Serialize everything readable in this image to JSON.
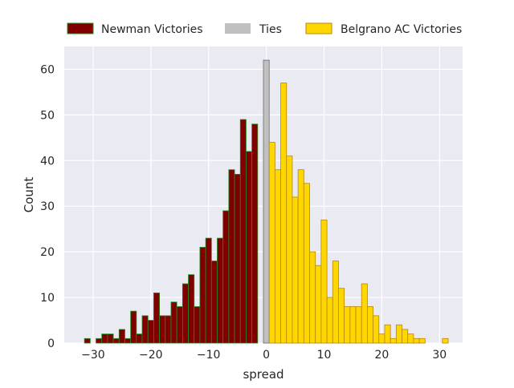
{
  "chart_data": {
    "type": "bar",
    "xlabel": "spread",
    "ylabel": "Count",
    "xlim": [
      -35,
      34
    ],
    "ylim": [
      0,
      65
    ],
    "x_ticks": [
      -30,
      -20,
      -10,
      0,
      10,
      20,
      30
    ],
    "x_tick_labels": [
      "−30",
      "−20",
      "−10",
      "0",
      "10",
      "20",
      "30"
    ],
    "y_ticks": [
      0,
      10,
      20,
      30,
      40,
      50,
      60
    ],
    "y_tick_labels": [
      "0",
      "10",
      "20",
      "30",
      "40",
      "50",
      "60"
    ],
    "grid": true,
    "legend_placement": "top",
    "series": [
      {
        "name": "Newman Victories",
        "color": "#800000",
        "edge_color": "#228b22",
        "x": [
          -31,
          -30,
          -29,
          -28,
          -27,
          -26,
          -25,
          -24,
          -23,
          -22,
          -21,
          -20,
          -19,
          -18,
          -17,
          -16,
          -15,
          -14,
          -13,
          -12,
          -11,
          -10,
          -9,
          -8,
          -7,
          -6,
          -5,
          -4,
          -3,
          -2,
          -1
        ],
        "values": [
          1,
          0,
          1,
          2,
          2,
          1,
          3,
          1,
          7,
          2,
          6,
          5,
          11,
          6,
          6,
          9,
          8,
          13,
          15,
          8,
          21,
          23,
          18,
          23,
          29,
          38,
          37,
          49,
          42,
          48,
          0
        ]
      },
      {
        "name": "Ties",
        "color": "#c0c0c0",
        "edge_color": "#696969",
        "x": [
          0
        ],
        "values": [
          62
        ]
      },
      {
        "name": "Belgrano AC Victories",
        "color": "#ffd700",
        "edge_color": "#b8860b",
        "x": [
          1,
          2,
          3,
          4,
          5,
          6,
          7,
          8,
          9,
          10,
          11,
          12,
          13,
          14,
          15,
          16,
          17,
          18,
          19,
          20,
          21,
          22,
          23,
          24,
          25,
          26,
          27,
          28,
          29,
          30,
          31
        ],
        "values": [
          44,
          38,
          57,
          41,
          32,
          38,
          35,
          20,
          17,
          27,
          10,
          18,
          12,
          8,
          8,
          8,
          13,
          8,
          6,
          2,
          4,
          1,
          4,
          3,
          2,
          1,
          1,
          0,
          0,
          0,
          1
        ]
      }
    ]
  }
}
